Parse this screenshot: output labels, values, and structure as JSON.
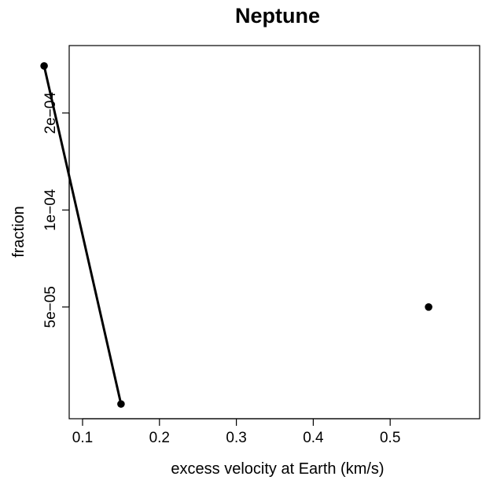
{
  "chart_data": {
    "type": "line",
    "title": "Neptune",
    "xlabel": "excess velocity at Earth (km/s)",
    "ylabel": "fraction",
    "y_scale": "log",
    "xlim": [
      0.03,
      0.56
    ],
    "x_ticks": [
      0.1,
      0.2,
      0.3,
      0.4,
      0.5
    ],
    "x_tick_labels": [
      "0.1",
      "0.2",
      "0.3",
      "0.4",
      "0.5"
    ],
    "y_ticks": [
      5e-05,
      0.0001,
      0.0002
    ],
    "y_tick_labels": [
      "5e−05",
      "1e−04",
      "2e−04"
    ],
    "grid": false,
    "series": [
      {
        "x": [
          0.05,
          0.15,
          0.55
        ],
        "y": [
          0.00028,
          2.5e-05,
          5e-05
        ],
        "line_segments": [
          [
            0,
            1
          ]
        ],
        "color": "#000000"
      }
    ]
  }
}
